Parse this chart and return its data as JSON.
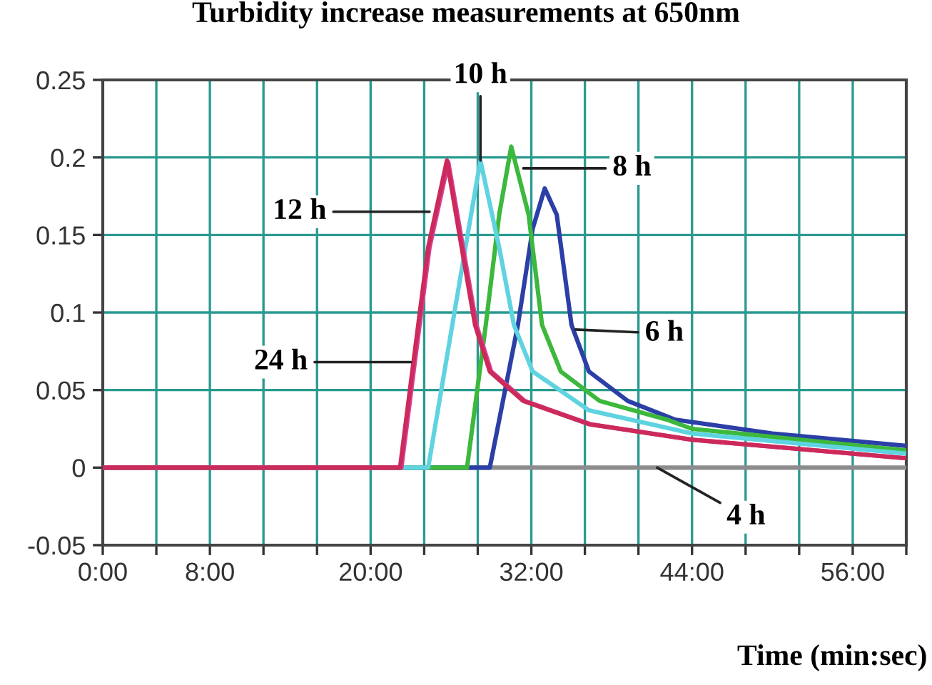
{
  "chart_data": {
    "type": "line",
    "title": "Turbidity increase measurements at 650nm",
    "xlabel": "Time (min:sec)",
    "xlim": [
      0,
      60
    ],
    "ylim": [
      -0.05,
      0.25
    ],
    "xticks": [
      {
        "value": 0,
        "label": "0:00"
      },
      {
        "value": 4,
        "label": null
      },
      {
        "value": 8,
        "label": "8:00"
      },
      {
        "value": 12,
        "label": null
      },
      {
        "value": 16,
        "label": null
      },
      {
        "value": 20,
        "label": "20:00"
      },
      {
        "value": 24,
        "label": null
      },
      {
        "value": 28,
        "label": null
      },
      {
        "value": 32,
        "label": "32:00"
      },
      {
        "value": 36,
        "label": null
      },
      {
        "value": 40,
        "label": null
      },
      {
        "value": 44,
        "label": "44:00"
      },
      {
        "value": 48,
        "label": null
      },
      {
        "value": 52,
        "label": null
      },
      {
        "value": 56,
        "label": "56:00"
      },
      {
        "value": 60,
        "label": null
      }
    ],
    "yticks": [
      -0.05,
      0,
      0.05,
      0.1,
      0.15,
      0.2,
      0.25
    ],
    "grid": true,
    "legend": false,
    "marker": "none",
    "line_style": "solid",
    "series": [
      {
        "color": "#8c8c8c",
        "x": [
          0,
          60
        ],
        "values": [
          0,
          0
        ]
      },
      {
        "color": "#2b3fa6",
        "x": [
          0,
          28.9,
          31.0,
          32.1,
          33.0,
          33.9,
          35.0,
          36.3,
          39.2,
          42.7,
          50,
          60
        ],
        "values": [
          0,
          0,
          0.092,
          0.154,
          0.18,
          0.163,
          0.092,
          0.062,
          0.043,
          0.031,
          0.022,
          0.014
        ]
      },
      {
        "color": "#3cb83c",
        "x": [
          0,
          27.2,
          28.6,
          29.6,
          30.5,
          31.8,
          32.8,
          34.2,
          37.1,
          42.1,
          44,
          60
        ],
        "values": [
          0,
          0,
          0.092,
          0.163,
          0.207,
          0.163,
          0.092,
          0.062,
          0.043,
          0.031,
          0.025,
          0.011
        ]
      },
      {
        "color": "#5fd3e0",
        "x": [
          0,
          24.3,
          26.1,
          27.2,
          28.2,
          29.6,
          30.7,
          32.1,
          36.3,
          44,
          60
        ],
        "values": [
          0,
          0,
          0.092,
          0.148,
          0.198,
          0.142,
          0.092,
          0.062,
          0.037,
          0.022,
          0.009
        ]
      },
      {
        "color": "#d8409a",
        "x": [
          0,
          22.3,
          23.3,
          24.4,
          25.8,
          26.9,
          27.9,
          29.0,
          31.5,
          36.4,
          44,
          60
        ],
        "values": [
          0,
          0,
          0.068,
          0.142,
          0.197,
          0.142,
          0.092,
          0.062,
          0.043,
          0.028,
          0.018,
          0.006
        ]
      },
      {
        "color": "#cc2a5a",
        "x": [
          0,
          22.2,
          23.2,
          24.3,
          25.7,
          26.8,
          27.8,
          28.9,
          31.4,
          36.3,
          44,
          60
        ],
        "values": [
          0,
          0,
          0.068,
          0.142,
          0.198,
          0.142,
          0.092,
          0.062,
          0.043,
          0.028,
          0.018,
          0.006
        ]
      }
    ],
    "annotations": [
      {
        "text": "10 h",
        "x": 28.2,
        "y": 0.198
      },
      {
        "text": "8 h",
        "x": 31.4,
        "y": 0.193
      },
      {
        "text": "12 h",
        "x": 24.4,
        "y": 0.165
      },
      {
        "text": "24 h",
        "x": 23.0,
        "y": 0.068
      },
      {
        "text": "6 h",
        "x": 35.3,
        "y": 0.089
      },
      {
        "text": "4 h",
        "x": 41.4,
        "y": 0
      }
    ]
  }
}
